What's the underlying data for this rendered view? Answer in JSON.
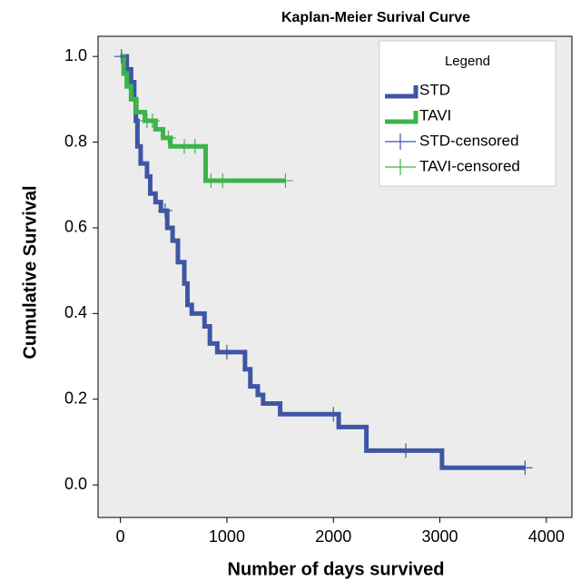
{
  "chart_data": {
    "type": "step",
    "title": "Kaplan-Meier Surival Curve",
    "x_label": "Number of days survived",
    "y_label": "Cumulative Survival",
    "legend_title": "Legend",
    "legend": "upper right",
    "xlim": [
      -210,
      4240
    ],
    "ylim": [
      -0.076,
      1.047
    ],
    "xticks": [
      0,
      1000,
      2000,
      3000,
      4000
    ],
    "yticks": [
      {
        "value": 0,
        "label": "0.0"
      },
      {
        "value": 0.2,
        "label": "0.2"
      },
      {
        "value": 0.4,
        "label": "0.4"
      },
      {
        "value": 0.6,
        "label": "0.6"
      },
      {
        "value": 0.8,
        "label": "0.8"
      },
      {
        "value": 1,
        "label": "1.0"
      }
    ],
    "series": [
      {
        "name": "STD",
        "color": "#3f56a5",
        "marker": "line",
        "x": [
          0,
          60,
          100,
          130,
          145,
          160,
          190,
          250,
          280,
          330,
          380,
          440,
          490,
          540,
          600,
          630,
          670,
          790,
          840,
          910,
          1170,
          1220,
          1290,
          1340,
          1500,
          2050,
          2310,
          3020,
          3800
        ],
        "values": [
          1.0,
          0.97,
          0.94,
          0.9,
          0.85,
          0.79,
          0.75,
          0.72,
          0.68,
          0.66,
          0.64,
          0.6,
          0.57,
          0.52,
          0.47,
          0.42,
          0.4,
          0.37,
          0.33,
          0.31,
          0.27,
          0.23,
          0.21,
          0.19,
          0.165,
          0.135,
          0.08,
          0.04,
          0.04
        ]
      },
      {
        "name": "TAVI",
        "color": "#3cb44a",
        "marker": "line",
        "x": [
          0,
          30,
          60,
          100,
          150,
          230,
          330,
          400,
          470,
          800,
          1550
        ],
        "values": [
          1.0,
          0.96,
          0.93,
          0.9,
          0.87,
          0.85,
          0.83,
          0.81,
          0.79,
          0.71,
          0.71
        ]
      },
      {
        "name": "STD-censored",
        "color": "#3f56a5",
        "marker": "plus",
        "x": [
          10,
          420,
          1000,
          2000,
          2680,
          3800
        ],
        "values": [
          1.0,
          0.64,
          0.31,
          0.165,
          0.08,
          0.04
        ]
      },
      {
        "name": "TAVI-censored",
        "color": "#3cb44a",
        "marker": "plus",
        "x": [
          250,
          300,
          450,
          600,
          700,
          850,
          960,
          1550
        ],
        "values": [
          0.85,
          0.85,
          0.81,
          0.79,
          0.79,
          0.71,
          0.71,
          0.71
        ]
      }
    ]
  }
}
